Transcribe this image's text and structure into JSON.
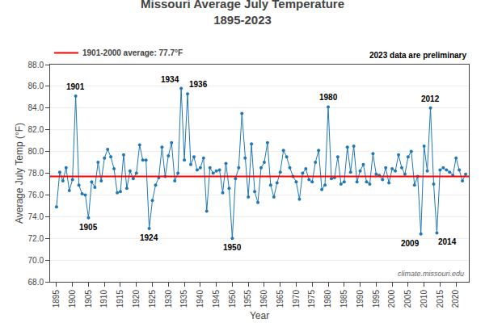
{
  "chart_data": {
    "type": "line",
    "title": "Missouri Average July Temperature",
    "subtitle": "1895-2023",
    "x_label": "Year",
    "y_label": "Average July Temp (°F)",
    "x": [
      1895,
      1896,
      1897,
      1898,
      1899,
      1900,
      1901,
      1902,
      1903,
      1904,
      1905,
      1906,
      1907,
      1908,
      1909,
      1910,
      1911,
      1912,
      1913,
      1914,
      1915,
      1916,
      1917,
      1918,
      1919,
      1920,
      1921,
      1922,
      1923,
      1924,
      1925,
      1926,
      1927,
      1928,
      1929,
      1930,
      1931,
      1932,
      1933,
      1934,
      1935,
      1936,
      1937,
      1938,
      1939,
      1940,
      1941,
      1942,
      1943,
      1944,
      1945,
      1946,
      1947,
      1948,
      1949,
      1950,
      1951,
      1952,
      1953,
      1954,
      1955,
      1956,
      1957,
      1958,
      1959,
      1960,
      1961,
      1962,
      1963,
      1964,
      1965,
      1966,
      1967,
      1968,
      1969,
      1970,
      1971,
      1972,
      1973,
      1974,
      1975,
      1976,
      1977,
      1978,
      1979,
      1980,
      1981,
      1982,
      1983,
      1984,
      1985,
      1986,
      1987,
      1988,
      1989,
      1990,
      1991,
      1992,
      1993,
      1994,
      1995,
      1996,
      1997,
      1998,
      1999,
      2000,
      2001,
      2002,
      2003,
      2004,
      2005,
      2006,
      2007,
      2008,
      2009,
      2010,
      2011,
      2012,
      2013,
      2014,
      2015,
      2016,
      2017,
      2018,
      2019,
      2020,
      2021,
      2022,
      2023
    ],
    "values": [
      74.9,
      78.1,
      77.3,
      78.5,
      76.4,
      77.4,
      85.1,
      76.9,
      76.1,
      76.0,
      73.9,
      77.2,
      76.7,
      79.0,
      77.3,
      79.4,
      80.2,
      79.5,
      78.4,
      76.2,
      76.3,
      79.7,
      76.6,
      78.2,
      77.5,
      78.0,
      80.6,
      79.2,
      79.2,
      72.9,
      75.5,
      76.9,
      77.6,
      80.4,
      77.7,
      79.6,
      80.8,
      77.3,
      78.0,
      85.8,
      79.2,
      85.3,
      78.8,
      79.5,
      78.3,
      78.5,
      79.4,
      74.5,
      78.5,
      78.0,
      78.2,
      78.3,
      76.2,
      78.9,
      76.6,
      72.0,
      77.5,
      78.5,
      83.5,
      79.4,
      75.8,
      80.7,
      76.3,
      75.3,
      78.5,
      79.0,
      80.8,
      76.9,
      75.8,
      77.1,
      78.1,
      80.1,
      79.5,
      78.5,
      77.7,
      77.2,
      75.6,
      78.0,
      78.4,
      77.4,
      77.2,
      79.0,
      80.1,
      76.5,
      76.9,
      84.1,
      77.5,
      77.6,
      79.5,
      77.0,
      77.2,
      80.4,
      78.1,
      80.5,
      77.2,
      78.2,
      78.8,
      77.2,
      77.0,
      79.8,
      77.9,
      77.8,
      77.4,
      78.5,
      77.1,
      78.4,
      78.2,
      79.7,
      78.5,
      77.9,
      79.5,
      80.0,
      76.9,
      77.7,
      72.4,
      80.5,
      78.2,
      84.0,
      77.0,
      72.5,
      78.3,
      78.5,
      78.3,
      78.1,
      77.8,
      79.4,
      78.3,
      77.3,
      77.9
    ],
    "marker": "circle",
    "xlim": [
      1893,
      2024
    ],
    "xticks": [
      1895,
      1900,
      1905,
      1910,
      1915,
      1920,
      1925,
      1930,
      1935,
      1940,
      1945,
      1950,
      1955,
      1960,
      1965,
      1970,
      1975,
      1980,
      1985,
      1990,
      1995,
      2000,
      2005,
      2010,
      2015,
      2020
    ],
    "ylim": [
      68.0,
      88.0
    ],
    "yticks": [
      {
        "value": 68.0,
        "label": "68.0"
      },
      {
        "value": 70.0,
        "label": "70.0"
      },
      {
        "value": 72.0,
        "label": "72.0"
      },
      {
        "value": 74.0,
        "label": "74.0"
      },
      {
        "value": 76.0,
        "label": "76.0"
      },
      {
        "value": 78.0,
        "label": "78.0"
      },
      {
        "value": 80.0,
        "label": "80.0"
      },
      {
        "value": 82.0,
        "label": "82.0"
      },
      {
        "value": 84.0,
        "label": "84.0"
      },
      {
        "value": 86.0,
        "label": "86.0"
      },
      {
        "value": 88.0,
        "label": "88.0"
      }
    ],
    "grid": "y",
    "legend": "top left",
    "reference_line": {
      "value": 77.7,
      "label": "1901-2000 average: 77.7°F",
      "color": "#FF0000"
    },
    "annotations": [
      {
        "text": "1901",
        "x": 1901,
        "y": 85.1
      },
      {
        "text": "1905",
        "x": 1905,
        "y": 73.9
      },
      {
        "text": "1924",
        "x": 1924,
        "y": 72.9
      },
      {
        "text": "1934",
        "x": 1934,
        "y": 85.8
      },
      {
        "text": "1936",
        "x": 1936,
        "y": 85.3
      },
      {
        "text": "1950",
        "x": 1950,
        "y": 72.0
      },
      {
        "text": "1980",
        "x": 1980,
        "y": 84.1
      },
      {
        "text": "2009",
        "x": 2009,
        "y": 72.4
      },
      {
        "text": "2012",
        "x": 2012,
        "y": 84.0
      },
      {
        "text": "2014",
        "x": 2014,
        "y": 72.5
      }
    ],
    "notes": [
      "2023 data are preliminary",
      "climate.missouri.edu"
    ]
  }
}
